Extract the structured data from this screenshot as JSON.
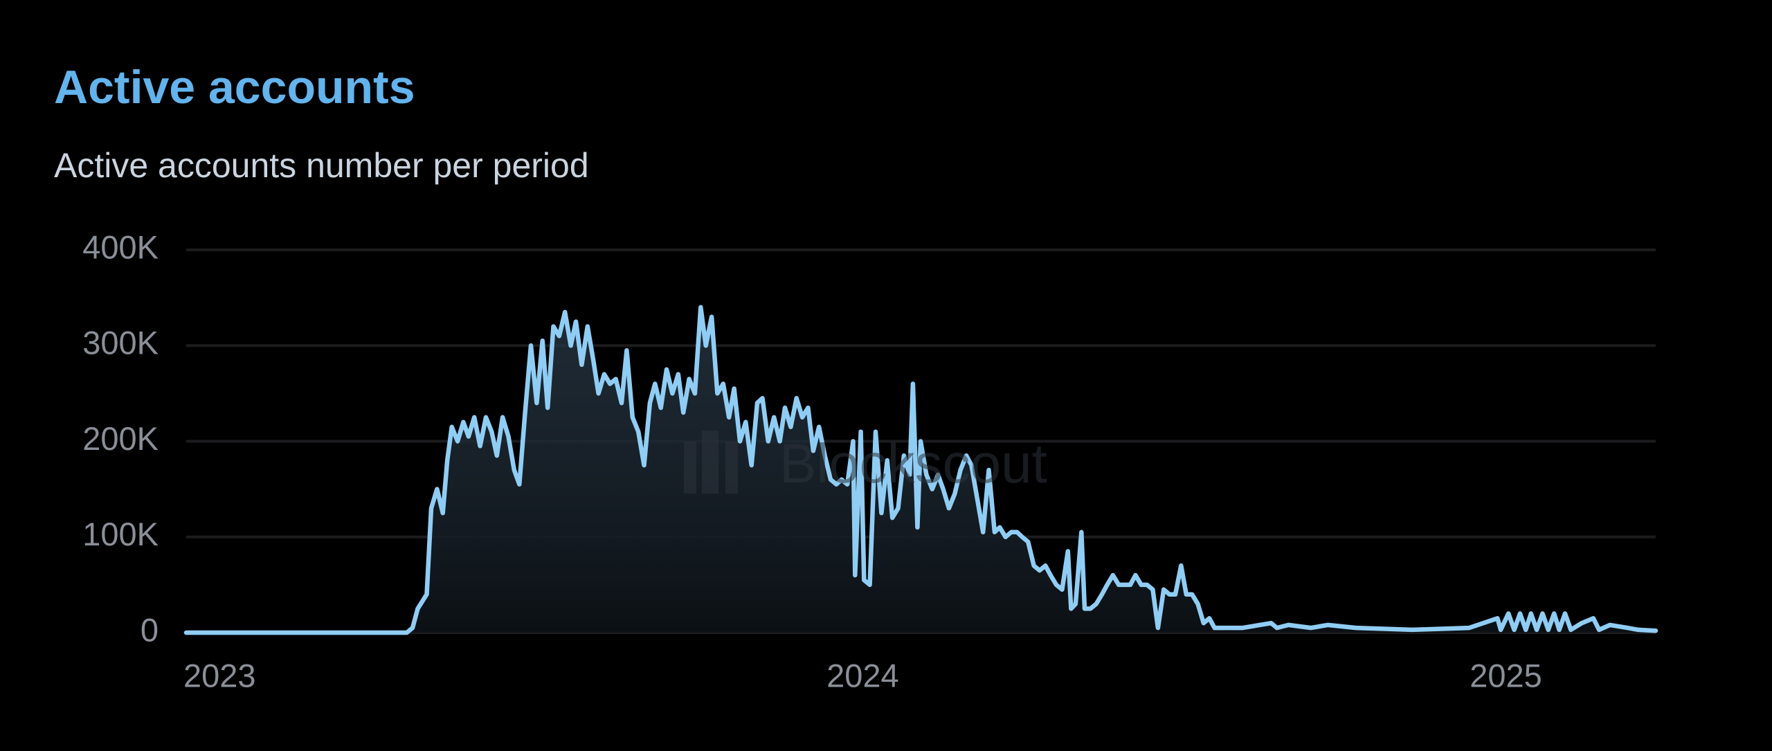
{
  "chart_data": {
    "type": "line",
    "title": "Active accounts",
    "subtitle": "Active accounts number per period",
    "watermark": "Blockscout",
    "color": "#90cdf4",
    "x": [
      2023.0,
      2023.343,
      2023.352,
      2023.36,
      2023.374,
      2023.381,
      2023.39,
      2023.399,
      2023.406,
      2023.413,
      2023.422,
      2023.431,
      2023.439,
      2023.448,
      2023.457,
      2023.466,
      2023.475,
      2023.483,
      2023.492,
      2023.501,
      2023.51,
      2023.518,
      2023.527,
      2023.536,
      2023.545,
      2023.554,
      2023.562,
      2023.571,
      2023.58,
      2023.589,
      2023.598,
      2023.606,
      2023.615,
      2023.624,
      2023.633,
      2023.641,
      2023.65,
      2023.659,
      2023.668,
      2023.677,
      2023.685,
      2023.694,
      2023.703,
      2023.712,
      2023.721,
      2023.729,
      2023.738,
      2023.747,
      2023.756,
      2023.765,
      2023.773,
      2023.782,
      2023.791,
      2023.8,
      2023.808,
      2023.817,
      2023.826,
      2023.835,
      2023.844,
      2023.852,
      2023.861,
      2023.87,
      2023.879,
      2023.888,
      2023.896,
      2023.905,
      2023.914,
      2023.923,
      2023.931,
      2023.94,
      2023.949,
      2023.958,
      2023.967,
      2023.975,
      2023.984,
      2023.993,
      2024.002,
      2024.011,
      2024.019,
      2024.028,
      2024.037,
      2024.04,
      2024.049,
      2024.054,
      2024.063,
      2024.072,
      2024.081,
      2024.09,
      2024.098,
      2024.107,
      2024.116,
      2024.125,
      2024.13,
      2024.137,
      2024.142,
      2024.151,
      2024.16,
      2024.169,
      2024.177,
      2024.186,
      2024.195,
      2024.204,
      2024.213,
      2024.221,
      2024.23,
      2024.239,
      2024.248,
      2024.257,
      2024.265,
      2024.274,
      2024.283,
      2024.292,
      2024.3,
      2024.309,
      2024.318,
      2024.327,
      2024.336,
      2024.344,
      2024.353,
      2024.362,
      2024.371,
      2024.376,
      2024.383,
      2024.392,
      2024.397,
      2024.406,
      2024.415,
      2024.424,
      2024.432,
      2024.441,
      2024.45,
      2024.459,
      2024.468,
      2024.476,
      2024.485,
      2024.494,
      2024.503,
      2024.511,
      2024.52,
      2024.529,
      2024.538,
      2024.547,
      2024.555,
      2024.564,
      2024.573,
      2024.582,
      2024.591,
      2024.599,
      2024.617,
      2024.643,
      2024.687,
      2024.696,
      2024.714,
      2024.749,
      2024.775,
      2024.819,
      2024.907,
      2024.995,
      2025.039,
      2025.044,
      2025.056,
      2025.065,
      2025.074,
      2025.083,
      2025.091,
      2025.1,
      2025.109,
      2025.118,
      2025.127,
      2025.135,
      2025.144,
      2025.153,
      2025.17,
      2025.188,
      2025.197,
      2025.214,
      2025.241,
      2025.258,
      2025.285
    ],
    "values": [
      0,
      0,
      5000,
      25000,
      40000,
      130000,
      150000,
      125000,
      180000,
      215000,
      200000,
      220000,
      205000,
      225000,
      195000,
      225000,
      210000,
      185000,
      225000,
      205000,
      170000,
      155000,
      230000,
      300000,
      240000,
      305000,
      235000,
      320000,
      310000,
      335000,
      300000,
      325000,
      280000,
      320000,
      285000,
      250000,
      270000,
      260000,
      265000,
      240000,
      295000,
      225000,
      210000,
      175000,
      240000,
      260000,
      235000,
      275000,
      250000,
      270000,
      230000,
      265000,
      250000,
      340000,
      300000,
      330000,
      250000,
      260000,
      225000,
      255000,
      200000,
      220000,
      175000,
      240000,
      245000,
      200000,
      225000,
      200000,
      235000,
      215000,
      245000,
      225000,
      235000,
      190000,
      215000,
      185000,
      160000,
      155000,
      160000,
      155000,
      200000,
      60000,
      210000,
      55000,
      50000,
      210000,
      125000,
      180000,
      120000,
      130000,
      185000,
      165000,
      260000,
      110000,
      200000,
      165000,
      150000,
      165000,
      150000,
      130000,
      145000,
      170000,
      185000,
      175000,
      140000,
      105000,
      170000,
      105000,
      110000,
      100000,
      105000,
      105000,
      100000,
      95000,
      70000,
      65000,
      70000,
      60000,
      50000,
      45000,
      85000,
      25000,
      30000,
      105000,
      25000,
      25000,
      30000,
      40000,
      50000,
      60000,
      50000,
      50000,
      50000,
      60000,
      50000,
      50000,
      45000,
      5000,
      45000,
      40000,
      40000,
      70000,
      40000,
      40000,
      30000,
      10000,
      15000,
      5000,
      5000,
      5000,
      10000,
      5000,
      8000,
      5000,
      8000,
      5000,
      3000,
      5000,
      15000,
      3000,
      20000,
      3000,
      20000,
      3000,
      20000,
      3000,
      20000,
      3000,
      20000,
      3000,
      20000,
      3000,
      10000,
      15000,
      3000,
      8000,
      5000,
      3000,
      2000
    ],
    "xlim": [
      2023,
      2025.285
    ],
    "xticks": [
      2023,
      2024,
      2025
    ],
    "ylim": [
      0,
      400000
    ],
    "yticks": [
      0,
      {
        "value": 100000,
        "label": "100K"
      },
      {
        "value": 200000,
        "label": "200K"
      },
      {
        "value": 300000,
        "label": "300K"
      },
      {
        "value": 400000,
        "label": "400K"
      }
    ],
    "grid": true
  }
}
